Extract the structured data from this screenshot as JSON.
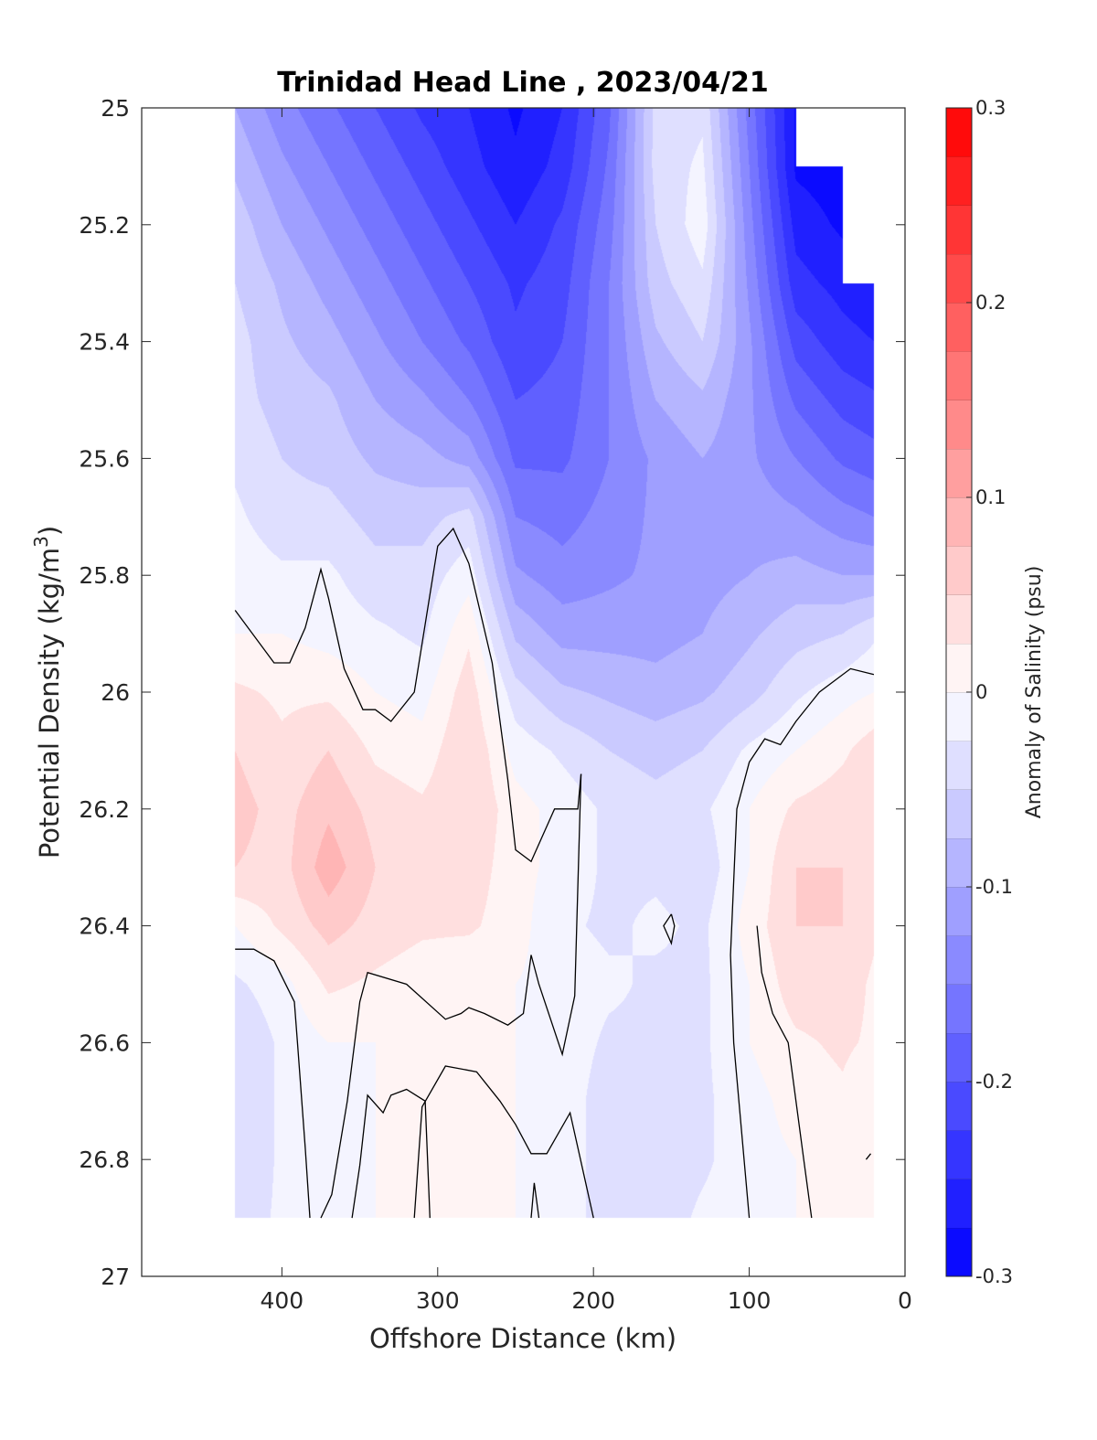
{
  "chart_data": {
    "type": "heatmap",
    "title": "Trinidad Head Line , 2023/04/21",
    "xlabel": "Offshore Distance (km)",
    "ylabel": "Potential Density (kg/m",
    "ylabel_sup": "3",
    "ylabel_close": ")",
    "xlim": [
      490,
      0
    ],
    "ylim": [
      25,
      27
    ],
    "xticks": [
      400,
      300,
      200,
      100,
      0
    ],
    "yticks": [
      25,
      25.2,
      25.4,
      25.6,
      25.8,
      26,
      26.2,
      26.4,
      26.6,
      26.8,
      27
    ],
    "xtick_labels": [
      "400",
      "300",
      "200",
      "100",
      "0"
    ],
    "ytick_labels": [
      "25",
      "25.2",
      "25.4",
      "25.6",
      "25.8",
      "26",
      "26.2",
      "26.4",
      "26.6",
      "26.8",
      "27"
    ],
    "colorbar": {
      "label": "Anomaly of Salinity (psu)",
      "range": [
        -0.3,
        0.3
      ],
      "levels": 24,
      "ticks": [
        -0.3,
        -0.2,
        -0.1,
        0,
        0.1,
        0.2,
        0.3
      ],
      "tick_labels": [
        "-0.3",
        "-0.2",
        "-0.1",
        "0",
        "0.1",
        "0.2",
        "0.3"
      ],
      "colormap": [
        "#0000ff",
        "#ffffff",
        "#ff0000"
      ]
    },
    "grid": false,
    "data_x_range": [
      430,
      20
    ],
    "data_y_range": [
      25,
      26.9
    ],
    "x": [
      430,
      400,
      370,
      340,
      310,
      280,
      250,
      220,
      190,
      160,
      130,
      100,
      70,
      40,
      20
    ],
    "y": [
      25,
      25.1,
      25.2,
      25.3,
      25.4,
      25.5,
      25.6,
      25.7,
      25.8,
      25.9,
      26,
      26.1,
      26.2,
      26.3,
      26.4,
      26.5,
      26.6,
      26.7,
      26.8,
      26.9
    ],
    "z": [
      [
        -0.1,
        -0.14,
        -0.17,
        -0.2,
        -0.23,
        -0.25,
        -0.28,
        -0.25,
        -0.18,
        -0.04,
        -0.03,
        -0.16,
        -0.28,
        null,
        null
      ],
      [
        -0.08,
        -0.12,
        -0.15,
        -0.18,
        -0.21,
        -0.24,
        -0.27,
        -0.24,
        -0.17,
        -0.04,
        -0.02,
        -0.15,
        -0.28,
        -0.29,
        null
      ],
      [
        -0.06,
        -0.1,
        -0.13,
        -0.16,
        -0.19,
        -0.22,
        -0.25,
        -0.22,
        -0.16,
        -0.05,
        -0.01,
        -0.14,
        -0.26,
        -0.28,
        null
      ],
      [
        -0.05,
        -0.08,
        -0.11,
        -0.14,
        -0.17,
        -0.2,
        -0.23,
        -0.21,
        -0.15,
        -0.06,
        -0.03,
        -0.13,
        -0.24,
        -0.26,
        -0.27
      ],
      [
        -0.04,
        -0.07,
        -0.09,
        -0.12,
        -0.15,
        -0.18,
        -0.22,
        -0.2,
        -0.15,
        -0.08,
        -0.05,
        -0.12,
        -0.21,
        -0.24,
        -0.25
      ],
      [
        -0.04,
        -0.06,
        -0.07,
        -0.1,
        -0.12,
        -0.15,
        -0.2,
        -0.19,
        -0.15,
        -0.1,
        -0.08,
        -0.12,
        -0.18,
        -0.21,
        -0.22
      ],
      [
        -0.03,
        -0.05,
        -0.06,
        -0.08,
        -0.09,
        -0.11,
        -0.18,
        -0.18,
        -0.15,
        -0.12,
        -0.1,
        -0.12,
        -0.15,
        -0.18,
        -0.19
      ],
      [
        -0.02,
        -0.04,
        -0.04,
        -0.06,
        -0.06,
        -0.04,
        -0.15,
        -0.16,
        -0.14,
        -0.12,
        -0.11,
        -0.11,
        -0.12,
        -0.14,
        -0.15
      ],
      [
        -0.01,
        -0.02,
        -0.02,
        -0.04,
        -0.04,
        -0.01,
        -0.12,
        -0.14,
        -0.13,
        -0.12,
        -0.11,
        -0.1,
        -0.09,
        -0.1,
        -0.1
      ],
      [
        0.0,
        0.0,
        -0.01,
        -0.02,
        -0.03,
        0.02,
        -0.08,
        -0.11,
        -0.11,
        -0.11,
        -0.1,
        -0.08,
        -0.06,
        -0.05,
        -0.03
      ],
      [
        0.03,
        0.02,
        0.02,
        0.0,
        -0.01,
        0.04,
        -0.04,
        -0.07,
        -0.08,
        -0.09,
        -0.08,
        -0.06,
        -0.03,
        -0.01,
        0.0
      ],
      [
        0.05,
        0.03,
        0.05,
        0.02,
        0.01,
        0.05,
        -0.01,
        -0.03,
        -0.05,
        -0.06,
        -0.05,
        -0.02,
        0.0,
        0.02,
        0.04
      ],
      [
        0.06,
        0.04,
        0.07,
        0.04,
        0.03,
        0.05,
        0.01,
        -0.01,
        -0.03,
        -0.04,
        -0.03,
        0.0,
        0.03,
        0.04,
        0.05
      ],
      [
        0.05,
        0.04,
        0.09,
        0.05,
        0.04,
        0.04,
        0.01,
        -0.01,
        -0.03,
        -0.03,
        -0.04,
        0.0,
        0.05,
        0.05,
        0.05
      ],
      [
        0.0,
        0.03,
        0.06,
        0.04,
        0.03,
        0.03,
        0.01,
        -0.02,
        -0.03,
        -0.02,
        -0.03,
        0.01,
        0.05,
        0.05,
        0.03
      ],
      [
        -0.03,
        -0.01,
        0.03,
        0.02,
        0.01,
        0.0,
        0.0,
        -0.01,
        -0.02,
        -0.03,
        -0.03,
        0.0,
        0.04,
        0.04,
        0.02
      ],
      [
        -0.05,
        -0.02,
        0.0,
        0.0,
        0.0,
        0.0,
        0.0,
        -0.01,
        -0.03,
        -0.03,
        -0.03,
        0.0,
        0.02,
        0.03,
        0.02
      ],
      [
        -0.05,
        -0.02,
        -0.01,
        0.0,
        0.0,
        0.0,
        0.0,
        -0.01,
        -0.04,
        -0.04,
        -0.03,
        -0.01,
        0.01,
        0.02,
        0.0
      ],
      [
        -0.05,
        -0.02,
        -0.01,
        0.0,
        0.0,
        0.0,
        0.0,
        -0.01,
        -0.04,
        -0.04,
        -0.03,
        -0.01,
        0.0,
        0.0,
        0.0
      ],
      [
        -0.04,
        -0.02,
        -0.01,
        0.0,
        0.0,
        0.0,
        0.0,
        -0.01,
        -0.04,
        -0.04,
        -0.02,
        -0.01,
        0.0,
        0.0,
        0.0
      ]
    ],
    "zero_contours": [
      [
        [
          430,
          25.86
        ],
        [
          405,
          25.95
        ],
        [
          395,
          25.95
        ],
        [
          385,
          25.89
        ],
        [
          375,
          25.79
        ],
        [
          370,
          25.84
        ],
        [
          360,
          25.96
        ],
        [
          348,
          26.03
        ],
        [
          340,
          26.03
        ],
        [
          330,
          26.05
        ],
        [
          315,
          26.0
        ],
        [
          300,
          25.75
        ],
        [
          290,
          25.72
        ],
        [
          280,
          25.78
        ],
        [
          265,
          25.95
        ],
        [
          255,
          26.15
        ],
        [
          250,
          26.27
        ],
        [
          240,
          26.29
        ],
        [
          225,
          26.2
        ],
        [
          210,
          26.2
        ],
        [
          208,
          26.14
        ]
      ],
      [
        [
          208,
          26.14
        ],
        [
          212,
          26.52
        ],
        [
          220,
          26.62
        ],
        [
          235,
          26.5
        ],
        [
          240,
          26.45
        ],
        [
          245,
          26.55
        ],
        [
          255,
          26.57
        ],
        [
          270,
          26.55
        ],
        [
          280,
          26.54
        ],
        [
          285,
          26.55
        ],
        [
          295,
          26.56
        ],
        [
          320,
          26.5
        ],
        [
          345,
          26.48
        ],
        [
          350,
          26.53
        ],
        [
          358,
          26.7
        ],
        [
          368,
          26.86
        ],
        [
          375,
          26.9
        ]
      ],
      [
        [
          430,
          26.44
        ],
        [
          418,
          26.44
        ],
        [
          405,
          26.46
        ],
        [
          392,
          26.53
        ],
        [
          390,
          26.6
        ],
        [
          385,
          26.78
        ],
        [
          382,
          26.9
        ]
      ],
      [
        [
          305,
          26.9
        ],
        [
          308,
          26.7
        ],
        [
          320,
          26.68
        ],
        [
          330,
          26.69
        ],
        [
          335,
          26.72
        ],
        [
          345,
          26.69
        ],
        [
          350,
          26.81
        ],
        [
          355,
          26.9
        ]
      ],
      [
        [
          200,
          26.9
        ],
        [
          205,
          26.84
        ],
        [
          215,
          26.72
        ],
        [
          230,
          26.79
        ],
        [
          240,
          26.79
        ],
        [
          250,
          26.74
        ],
        [
          260,
          26.7
        ],
        [
          275,
          26.65
        ],
        [
          295,
          26.64
        ],
        [
          310,
          26.71
        ],
        [
          315,
          26.9
        ]
      ],
      [
        [
          240,
          26.9
        ],
        [
          238,
          26.84
        ],
        [
          235,
          26.9
        ]
      ],
      [
        [
          100,
          26.9
        ],
        [
          110,
          26.6
        ],
        [
          112,
          26.45
        ],
        [
          108,
          26.2
        ],
        [
          100,
          26.12
        ],
        [
          90,
          26.08
        ],
        [
          80,
          26.09
        ],
        [
          70,
          26.05
        ],
        [
          55,
          26.0
        ],
        [
          35,
          25.96
        ],
        [
          20,
          25.97
        ]
      ],
      [
        [
          25,
          26.8
        ],
        [
          22,
          26.79
        ]
      ],
      [
        [
          150,
          26.38
        ],
        [
          155,
          26.4
        ],
        [
          150,
          26.43
        ],
        [
          148,
          26.4
        ],
        [
          150,
          26.38
        ]
      ],
      [
        [
          60,
          26.9
        ],
        [
          65,
          26.8
        ],
        [
          75,
          26.6
        ],
        [
          85,
          26.55
        ],
        [
          92,
          26.48
        ],
        [
          95,
          26.4
        ]
      ]
    ]
  }
}
